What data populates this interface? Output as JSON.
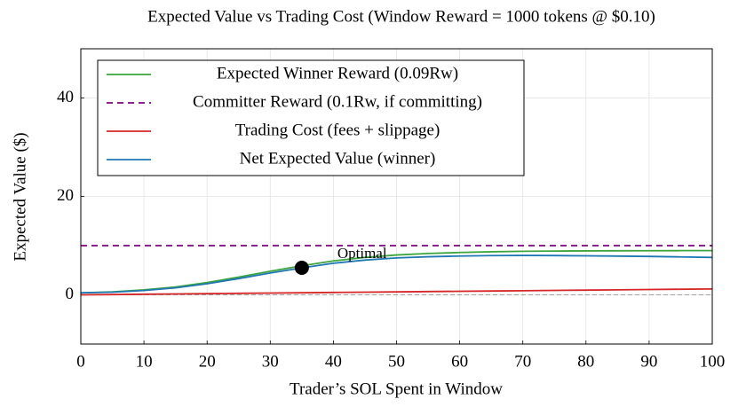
{
  "chart_data": {
    "type": "line",
    "title": "Expected Value vs Trading Cost (Window Reward = 1000 tokens @ $0.10)",
    "x_label": "Trader’s SOL Spent in Window",
    "y_label": "Expected Value ($)",
    "x": [
      0,
      5,
      10,
      15,
      20,
      25,
      30,
      35,
      40,
      45,
      50,
      55,
      60,
      65,
      70,
      75,
      80,
      85,
      90,
      95,
      100
    ],
    "series": [
      {
        "name": "Expected Winner Reward (0.09Rw)",
        "color": "#3ca53c",
        "dash": false,
        "values": [
          0.4,
          0.6,
          1.0,
          1.6,
          2.5,
          3.6,
          4.8,
          5.9,
          6.9,
          7.6,
          8.1,
          8.4,
          8.6,
          8.75,
          8.85,
          8.9,
          8.93,
          8.95,
          8.97,
          8.98,
          8.99
        ]
      },
      {
        "name": "Committer Reward (0.1Rw, if committing)",
        "color": "#800080",
        "dash": true,
        "values": [
          10,
          10,
          10,
          10,
          10,
          10,
          10,
          10,
          10,
          10,
          10,
          10,
          10,
          10,
          10,
          10,
          10,
          10,
          10,
          10,
          10
        ]
      },
      {
        "name": "Trading Cost (fees + slippage)",
        "color": "#d62728",
        "dash": false,
        "values": [
          0,
          0.06,
          0.12,
          0.18,
          0.24,
          0.3,
          0.36,
          0.42,
          0.48,
          0.54,
          0.6,
          0.66,
          0.72,
          0.78,
          0.84,
          0.9,
          0.96,
          1.02,
          1.08,
          1.14,
          1.2
        ]
      },
      {
        "name": "Net Expected Value (winner)",
        "color": "#1f77b4",
        "dash": false,
        "values": [
          0.4,
          0.54,
          0.88,
          1.42,
          2.26,
          3.3,
          4.44,
          5.48,
          6.42,
          7.06,
          7.5,
          7.74,
          7.88,
          7.97,
          8.01,
          7.98,
          7.93,
          7.87,
          7.8,
          7.7,
          7.6
        ]
      }
    ],
    "annotation": {
      "text": "Optimal",
      "x": 35,
      "y": 5.5
    },
    "xlim": [
      0,
      100
    ],
    "xticks": [
      0,
      10,
      20,
      30,
      40,
      50,
      60,
      70,
      80,
      90,
      100
    ],
    "ylim": [
      -10,
      50
    ],
    "yticks": [
      0,
      20,
      40
    ],
    "grid": true,
    "legend": "upper left"
  }
}
